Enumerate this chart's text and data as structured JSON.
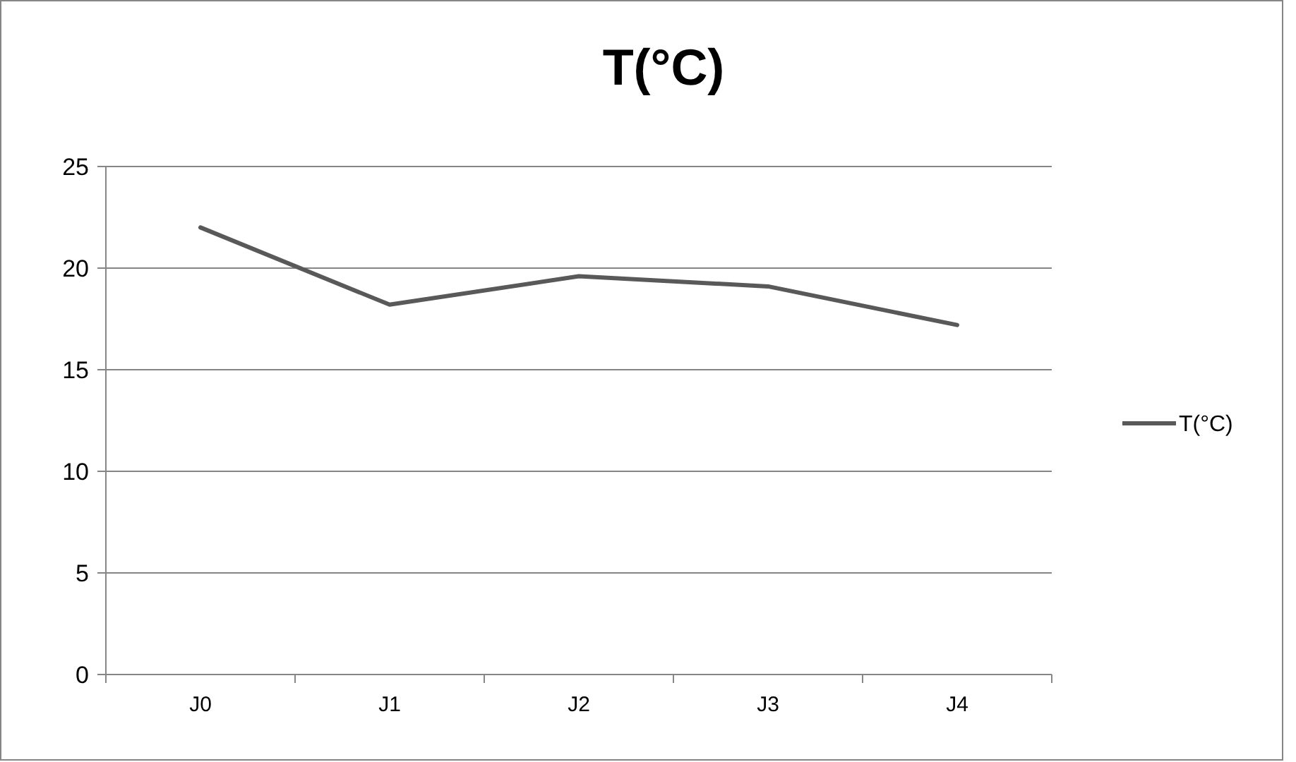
{
  "chart_data": {
    "type": "line",
    "title": "T(°C)",
    "categories": [
      "J0",
      "J1",
      "J2",
      "J3",
      "J4"
    ],
    "series": [
      {
        "name": "T(°C)",
        "color": "#595959",
        "values": [
          22,
          18.2,
          19.6,
          19.1,
          17.2
        ]
      }
    ],
    "ylim": [
      0,
      25
    ],
    "yticks": [
      0,
      5,
      10,
      15,
      20,
      25
    ],
    "grid": "y",
    "legend": "right",
    "marker": "none",
    "line_style": "solid"
  }
}
